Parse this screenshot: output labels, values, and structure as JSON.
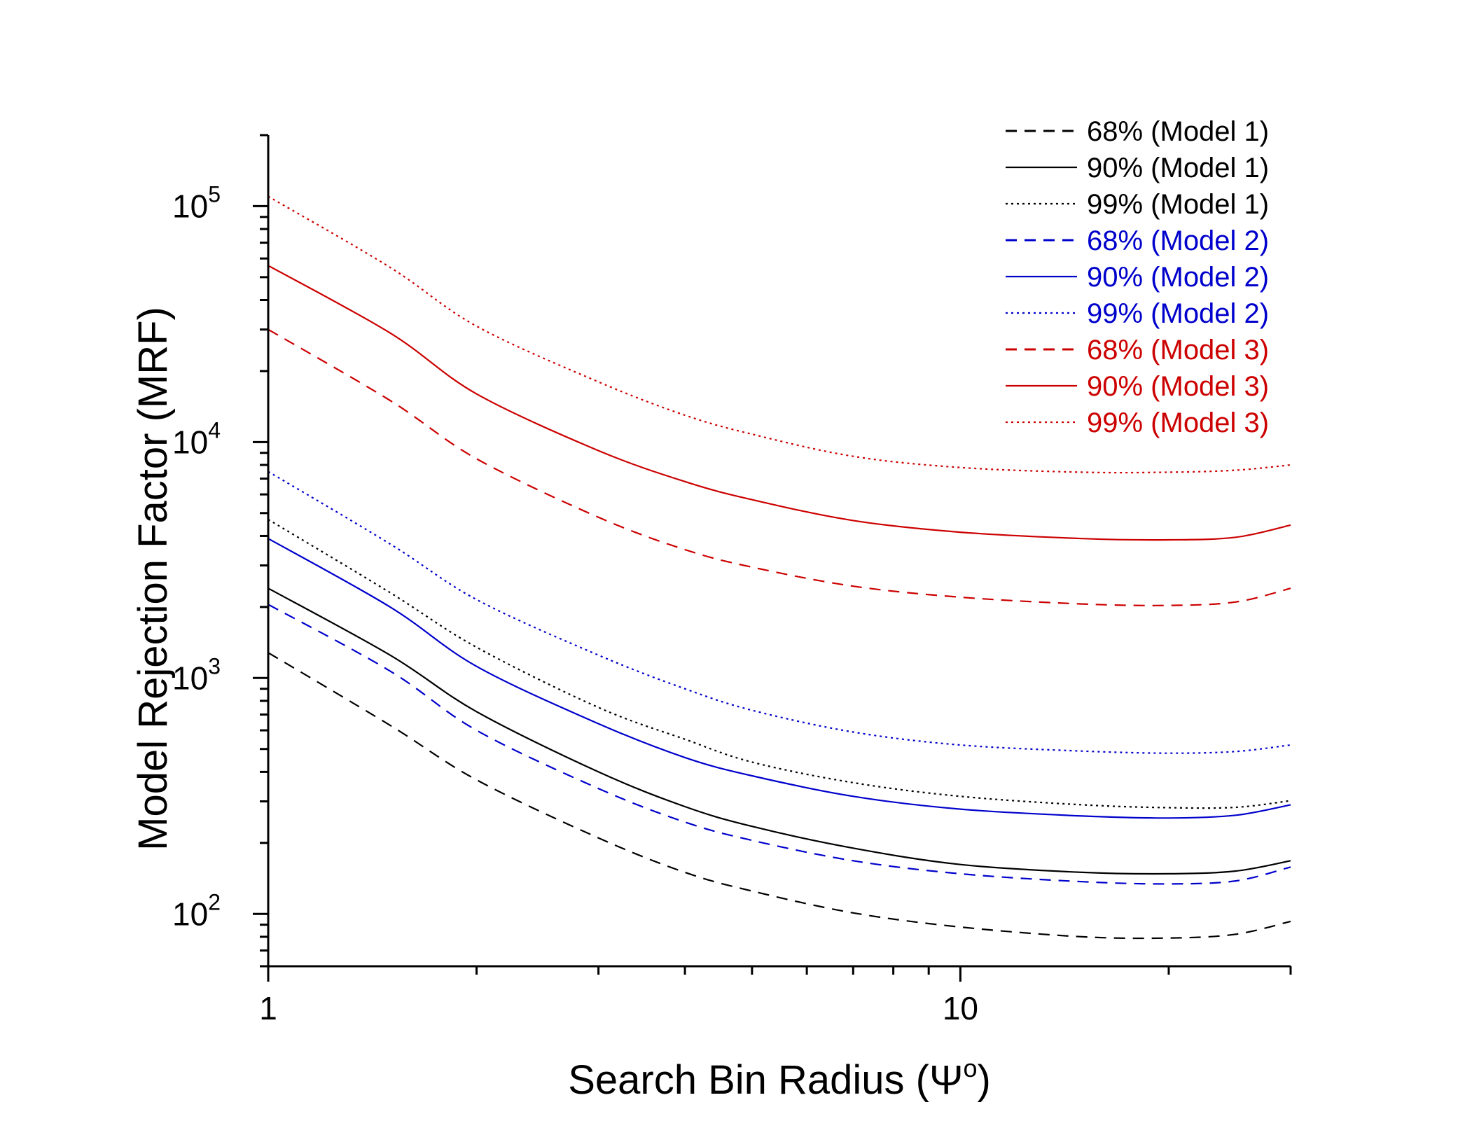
{
  "chart_data": {
    "type": "line",
    "title": "",
    "xlabel": "Search Bin Radius (Ψ",
    "xlabel_superscript": "o",
    "xlabel_suffix": ")",
    "ylabel": "Model Rejection Factor (MRF)",
    "xscale": "log",
    "yscale": "log",
    "xlim": [
      1,
      30
    ],
    "ylim": [
      60,
      200000
    ],
    "x_tick_labels": [
      {
        "value": 1,
        "label": "1"
      },
      {
        "value": 10,
        "label": "10"
      }
    ],
    "y_tick_labels": [
      {
        "value": 100,
        "base": "10",
        "exp": "2"
      },
      {
        "value": 1000,
        "base": "10",
        "exp": "3"
      },
      {
        "value": 10000,
        "base": "10",
        "exp": "4"
      },
      {
        "value": 100000,
        "base": "10",
        "exp": "5"
      }
    ],
    "grid": false,
    "legend_position": "top-right",
    "x": [
      1,
      1.5,
      2,
      3,
      4,
      5,
      7,
      10,
      15,
      20,
      25,
      30
    ],
    "series": [
      {
        "name": "68% (Model 1)",
        "color": "#000000",
        "dash": "dashed",
        "values": [
          1280,
          630,
          370,
          210,
          150,
          125,
          101,
          88,
          80,
          79,
          82,
          93
        ]
      },
      {
        "name": "90% (Model 1)",
        "color": "#000000",
        "dash": "solid",
        "values": [
          2400,
          1250,
          720,
          400,
          285,
          235,
          190,
          162,
          150,
          148,
          152,
          168
        ]
      },
      {
        "name": "99% (Model 1)",
        "color": "#000000",
        "dash": "dotted",
        "values": [
          4700,
          2300,
          1350,
          750,
          550,
          440,
          360,
          315,
          290,
          282,
          283,
          302
        ]
      },
      {
        "name": "68% (Model 2)",
        "color": "#0000cc",
        "dash": "dashed",
        "values": [
          2050,
          1070,
          600,
          340,
          245,
          205,
          168,
          148,
          137,
          134,
          138,
          158
        ]
      },
      {
        "name": "90% (Model 2)",
        "color": "#0000cc",
        "dash": "solid",
        "values": [
          3900,
          2000,
          1120,
          640,
          460,
          385,
          315,
          278,
          260,
          255,
          262,
          290
        ]
      },
      {
        "name": "99% (Model 2)",
        "color": "#0000cc",
        "dash": "dotted",
        "values": [
          7500,
          3700,
          2150,
          1250,
          900,
          730,
          590,
          520,
          490,
          480,
          488,
          520
        ]
      },
      {
        "name": "68% (Model 3)",
        "color": "#cc0000",
        "dash": "dashed",
        "values": [
          30000,
          15000,
          8500,
          4800,
          3500,
          2950,
          2450,
          2200,
          2060,
          2030,
          2100,
          2400
        ]
      },
      {
        "name": "90% (Model 3)",
        "color": "#cc0000",
        "dash": "solid",
        "values": [
          56000,
          29000,
          16000,
          9200,
          6800,
          5700,
          4650,
          4150,
          3900,
          3850,
          3950,
          4450
        ]
      },
      {
        "name": "99% (Model 3)",
        "color": "#cc0000",
        "dash": "dotted",
        "values": [
          110000,
          55000,
          31000,
          18000,
          13000,
          10800,
          8700,
          7800,
          7450,
          7450,
          7600,
          8000
        ]
      }
    ]
  }
}
